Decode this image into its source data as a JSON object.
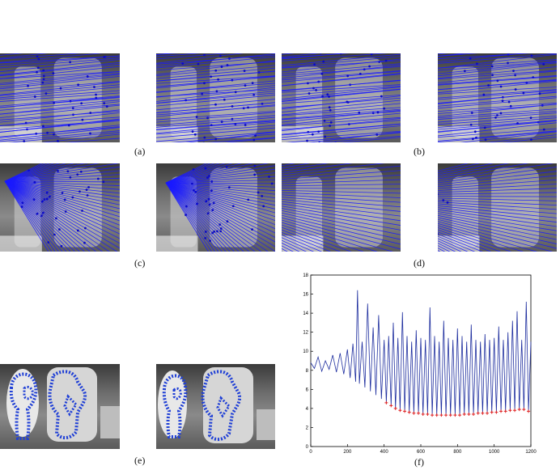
{
  "captions": {
    "a": "(a)",
    "b": "(b)",
    "c": "(c)",
    "d": "(d)",
    "e": "(e)",
    "f": "(f)"
  },
  "colors": {
    "epipolar_line": "#1a1aff",
    "contour": "#1f3fd6",
    "plot_line": "#1f2f9f",
    "minima_marker": "#e02020"
  },
  "chart_data": {
    "type": "line",
    "title": "",
    "xlabel": "",
    "ylabel": "",
    "xlim": [
      0,
      1200
    ],
    "ylim": [
      0,
      18
    ],
    "x_ticks": [
      "0",
      "200",
      "400",
      "600",
      "800",
      "1000",
      "1200"
    ],
    "y_ticks": [
      "0",
      "2",
      "4",
      "6",
      "8",
      "10",
      "12",
      "14",
      "16",
      "18"
    ],
    "grid": false,
    "series": [
      {
        "points": [
          [
            0,
            8.8
          ],
          [
            20,
            8.2
          ],
          [
            40,
            9.4
          ],
          [
            60,
            7.9
          ],
          [
            80,
            9.0
          ],
          [
            100,
            8.1
          ],
          [
            120,
            9.6
          ],
          [
            140,
            7.8
          ],
          [
            160,
            9.8
          ],
          [
            180,
            7.6
          ],
          [
            200,
            10.2
          ],
          [
            215,
            7.2
          ],
          [
            230,
            10.8
          ],
          [
            245,
            6.8
          ],
          [
            255,
            16.4
          ],
          [
            265,
            6.6
          ],
          [
            280,
            11.0
          ],
          [
            295,
            6.2
          ],
          [
            310,
            15.0
          ],
          [
            325,
            5.8
          ],
          [
            340,
            12.5
          ],
          [
            355,
            5.4
          ],
          [
            370,
            13.8
          ],
          [
            385,
            5.0
          ],
          [
            400,
            11.2
          ],
          [
            412,
            4.6
          ],
          [
            425,
            11.6
          ],
          [
            438,
            4.3
          ],
          [
            450,
            13.0
          ],
          [
            462,
            4.0
          ],
          [
            475,
            11.4
          ],
          [
            487,
            3.8
          ],
          [
            500,
            14.1
          ],
          [
            512,
            3.7
          ],
          [
            525,
            11.6
          ],
          [
            537,
            3.6
          ],
          [
            550,
            11.0
          ],
          [
            562,
            3.5
          ],
          [
            575,
            12.2
          ],
          [
            587,
            3.5
          ],
          [
            600,
            11.4
          ],
          [
            612,
            3.4
          ],
          [
            625,
            11.2
          ],
          [
            637,
            3.4
          ],
          [
            650,
            14.6
          ],
          [
            662,
            3.3
          ],
          [
            675,
            11.6
          ],
          [
            687,
            3.3
          ],
          [
            700,
            11.0
          ],
          [
            712,
            3.3
          ],
          [
            725,
            13.2
          ],
          [
            737,
            3.3
          ],
          [
            750,
            11.4
          ],
          [
            762,
            3.3
          ],
          [
            775,
            11.2
          ],
          [
            787,
            3.3
          ],
          [
            800,
            12.4
          ],
          [
            812,
            3.3
          ],
          [
            825,
            11.6
          ],
          [
            837,
            3.4
          ],
          [
            850,
            11.0
          ],
          [
            862,
            3.4
          ],
          [
            875,
            12.8
          ],
          [
            887,
            3.4
          ],
          [
            900,
            11.2
          ],
          [
            912,
            3.5
          ],
          [
            925,
            11.0
          ],
          [
            937,
            3.5
          ],
          [
            950,
            11.8
          ],
          [
            962,
            3.5
          ],
          [
            975,
            11.2
          ],
          [
            987,
            3.6
          ],
          [
            1000,
            11.4
          ],
          [
            1012,
            3.6
          ],
          [
            1025,
            12.6
          ],
          [
            1037,
            3.7
          ],
          [
            1050,
            11.2
          ],
          [
            1062,
            3.7
          ],
          [
            1075,
            12.0
          ],
          [
            1087,
            3.8
          ],
          [
            1100,
            13.2
          ],
          [
            1112,
            3.8
          ],
          [
            1125,
            14.2
          ],
          [
            1137,
            3.9
          ],
          [
            1150,
            11.2
          ],
          [
            1162,
            3.9
          ],
          [
            1175,
            15.2
          ],
          [
            1187,
            3.7
          ],
          [
            1200,
            11.0
          ]
        ]
      }
    ],
    "minima_markers": [
      [
        412,
        4.6
      ],
      [
        438,
        4.3
      ],
      [
        462,
        4.0
      ],
      [
        487,
        3.8
      ],
      [
        512,
        3.7
      ],
      [
        537,
        3.6
      ],
      [
        562,
        3.5
      ],
      [
        587,
        3.5
      ],
      [
        612,
        3.4
      ],
      [
        637,
        3.4
      ],
      [
        662,
        3.3
      ],
      [
        687,
        3.3
      ],
      [
        712,
        3.3
      ],
      [
        737,
        3.3
      ],
      [
        762,
        3.3
      ],
      [
        787,
        3.3
      ],
      [
        812,
        3.3
      ],
      [
        837,
        3.4
      ],
      [
        862,
        3.4
      ],
      [
        887,
        3.4
      ],
      [
        912,
        3.5
      ],
      [
        937,
        3.5
      ],
      [
        962,
        3.5
      ],
      [
        987,
        3.6
      ],
      [
        1012,
        3.6
      ],
      [
        1037,
        3.7
      ],
      [
        1062,
        3.7
      ],
      [
        1087,
        3.8
      ],
      [
        1112,
        3.8
      ],
      [
        1137,
        3.9
      ],
      [
        1162,
        3.9
      ],
      [
        1187,
        3.7
      ]
    ]
  }
}
